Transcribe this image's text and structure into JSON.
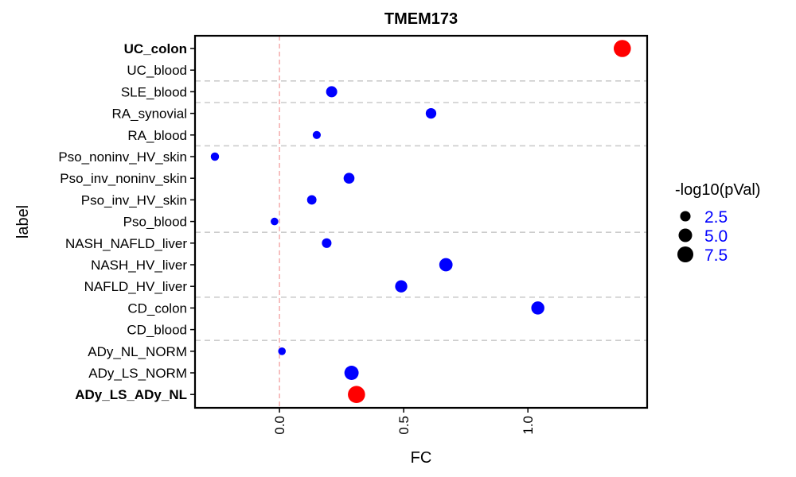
{
  "chart_data": {
    "type": "scatter",
    "title": "TMEM173",
    "xlabel": "FC",
    "ylabel": "label",
    "xlim": [
      -0.34,
      1.48
    ],
    "xticks": [
      0.0,
      0.5,
      1.0
    ],
    "xtick_labels": [
      "0.0",
      "0.5",
      "1.0"
    ],
    "reference_line_x": 0,
    "reference_line_color": "#f4a6a6",
    "group_separator_color": "#cccccc",
    "group_separators_between": [
      [
        "UC_blood",
        "SLE_blood"
      ],
      [
        "SLE_blood",
        "RA_synovial"
      ],
      [
        "RA_blood",
        "Pso_noninv_HV_skin"
      ],
      [
        "Pso_blood",
        "NASH_NAFLD_liver"
      ],
      [
        "NAFLD_HV_liver",
        "CD_colon"
      ],
      [
        "CD_blood",
        "ADy_NL_NORM"
      ]
    ],
    "categories": [
      "UC_colon",
      "UC_blood",
      "SLE_blood",
      "RA_synovial",
      "RA_blood",
      "Pso_noninv_HV_skin",
      "Pso_inv_noninv_skin",
      "Pso_inv_HV_skin",
      "Pso_blood",
      "NASH_NAFLD_liver",
      "NASH_HV_liver",
      "NAFLD_HV_liver",
      "CD_colon",
      "CD_blood",
      "ADy_NL_NORM",
      "ADy_LS_NORM",
      "ADy_LS_ADy_NL"
    ],
    "bold_categories": [
      "UC_colon",
      "ADy_LS_ADy_NL"
    ],
    "points": [
      {
        "label": "UC_colon",
        "fc": 1.38,
        "neglog10p": 9.0,
        "color": "#ff0000"
      },
      {
        "label": "SLE_blood",
        "fc": 0.21,
        "neglog10p": 3.0,
        "color": "#0000ff"
      },
      {
        "label": "RA_synovial",
        "fc": 0.61,
        "neglog10p": 2.6,
        "color": "#0000ff"
      },
      {
        "label": "RA_blood",
        "fc": 0.15,
        "neglog10p": 1.2,
        "color": "#0000ff"
      },
      {
        "label": "Pso_noninv_HV_skin",
        "fc": -0.26,
        "neglog10p": 1.3,
        "color": "#0000ff"
      },
      {
        "label": "Pso_inv_noninv_skin",
        "fc": 0.28,
        "neglog10p": 2.8,
        "color": "#0000ff"
      },
      {
        "label": "Pso_inv_HV_skin",
        "fc": 0.13,
        "neglog10p": 1.9,
        "color": "#0000ff"
      },
      {
        "label": "Pso_blood",
        "fc": -0.02,
        "neglog10p": 1.0,
        "color": "#0000ff"
      },
      {
        "label": "NASH_NAFLD_liver",
        "fc": 0.19,
        "neglog10p": 2.0,
        "color": "#0000ff"
      },
      {
        "label": "NASH_HV_liver",
        "fc": 0.67,
        "neglog10p": 4.8,
        "color": "#0000ff"
      },
      {
        "label": "NAFLD_HV_liver",
        "fc": 0.49,
        "neglog10p": 3.8,
        "color": "#0000ff"
      },
      {
        "label": "CD_colon",
        "fc": 1.04,
        "neglog10p": 4.6,
        "color": "#0000ff"
      },
      {
        "label": "ADy_NL_NORM",
        "fc": 0.01,
        "neglog10p": 1.0,
        "color": "#0000ff"
      },
      {
        "label": "ADy_LS_NORM",
        "fc": 0.29,
        "neglog10p": 5.7,
        "color": "#0000ff"
      },
      {
        "label": "ADy_LS_ADy_NL",
        "fc": 0.31,
        "neglog10p": 9.0,
        "color": "#ff0000"
      }
    ],
    "legend": {
      "title": "-log10(pVal)",
      "position": "right",
      "entries": [
        {
          "label": "2.5",
          "value": 2.5
        },
        {
          "label": "5.0",
          "value": 5.0
        },
        {
          "label": "7.5",
          "value": 7.5
        }
      ]
    },
    "grid": false
  }
}
